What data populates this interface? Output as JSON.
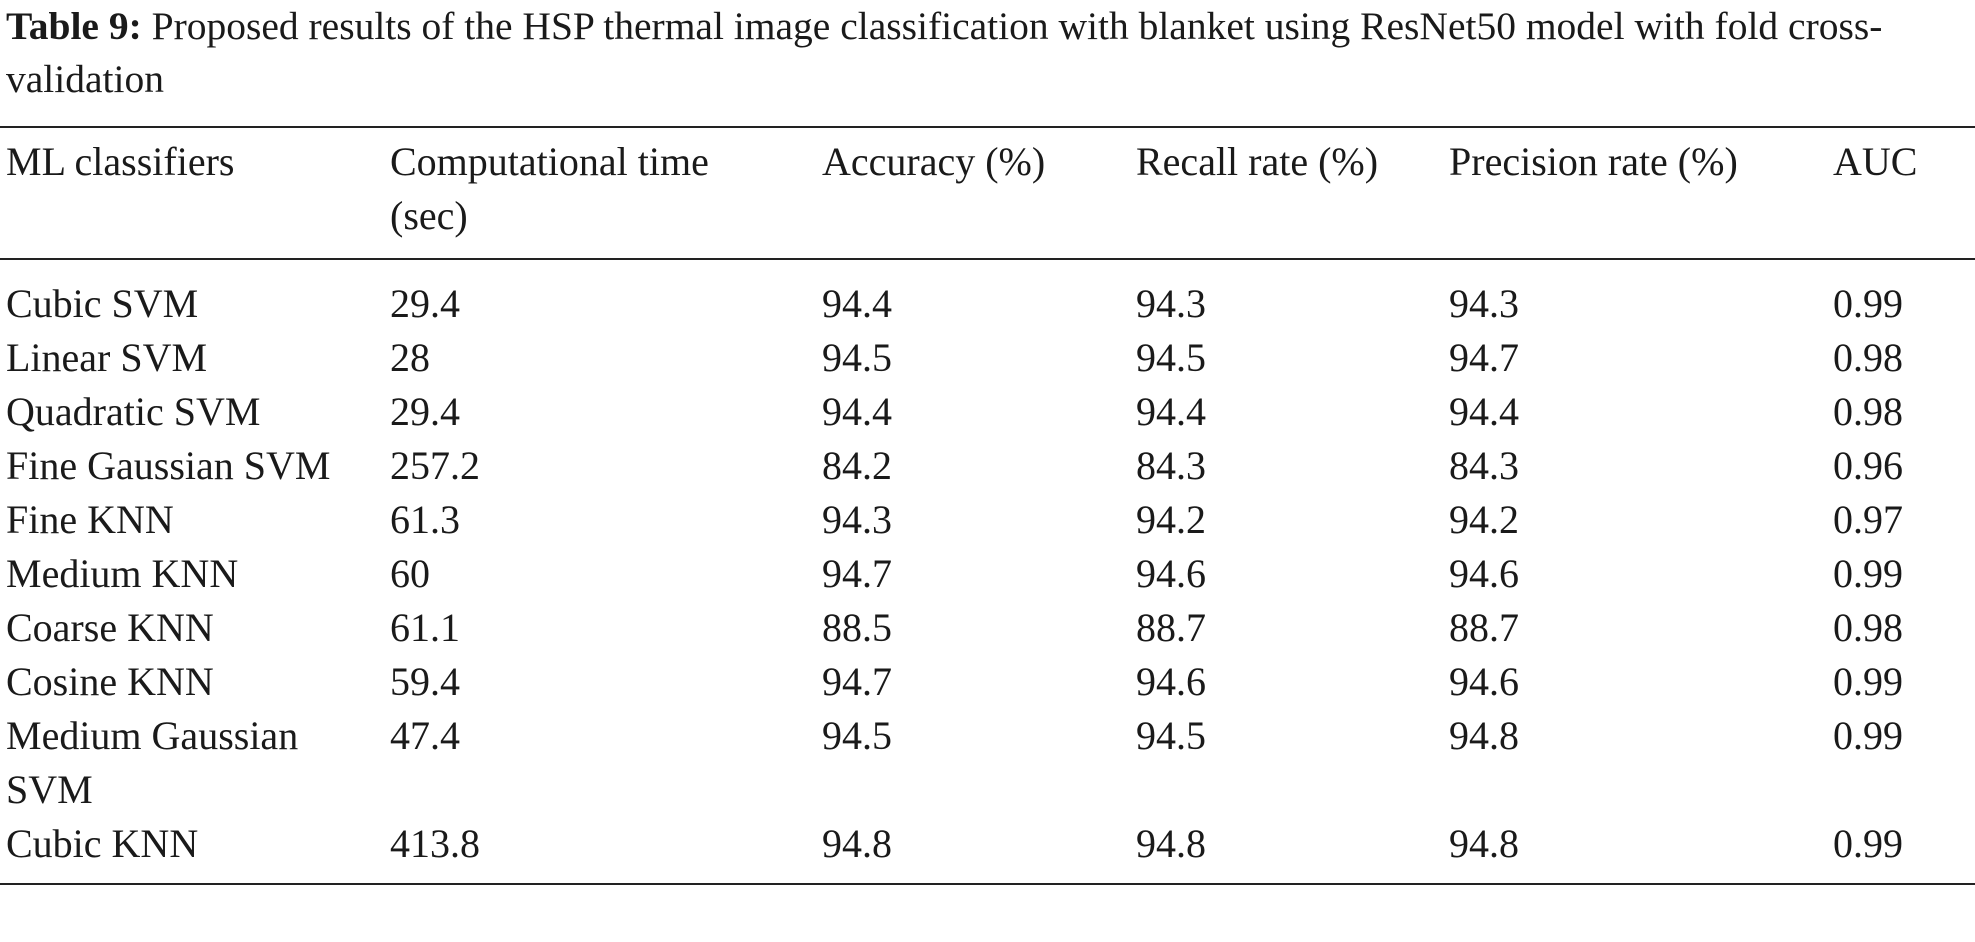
{
  "caption": {
    "label": "Table 9:",
    "text": "Proposed results of the HSP thermal image classification with blanket using ResNet50 model with fold cross-validation"
  },
  "table": {
    "header": [
      "ML classifiers",
      "Computational time (sec)",
      "Accuracy (%)",
      "Recall rate (%)",
      "Precision rate (%)",
      "AUC"
    ],
    "rows": [
      [
        "Cubic SVM",
        29.4,
        94.4,
        94.3,
        94.3,
        0.99
      ],
      [
        "Linear SVM",
        28,
        94.5,
        94.5,
        94.7,
        0.98
      ],
      [
        "Quadratic SVM",
        29.4,
        94.4,
        94.4,
        94.4,
        0.98
      ],
      [
        "Fine Gaussian SVM",
        257.2,
        84.2,
        84.3,
        84.3,
        0.96
      ],
      [
        "Fine KNN",
        61.3,
        94.3,
        94.2,
        94.2,
        0.97
      ],
      [
        "Medium KNN",
        60,
        94.7,
        94.6,
        94.6,
        0.99
      ],
      [
        "Coarse KNN",
        61.1,
        88.5,
        88.7,
        88.7,
        0.98
      ],
      [
        "Cosine KNN",
        59.4,
        94.7,
        94.6,
        94.6,
        0.99
      ],
      [
        "Medium Gaussian SVM",
        47.4,
        94.5,
        94.5,
        94.8,
        0.99
      ],
      [
        "Cubic KNN",
        413.8,
        94.8,
        94.8,
        94.8,
        0.99
      ]
    ]
  }
}
